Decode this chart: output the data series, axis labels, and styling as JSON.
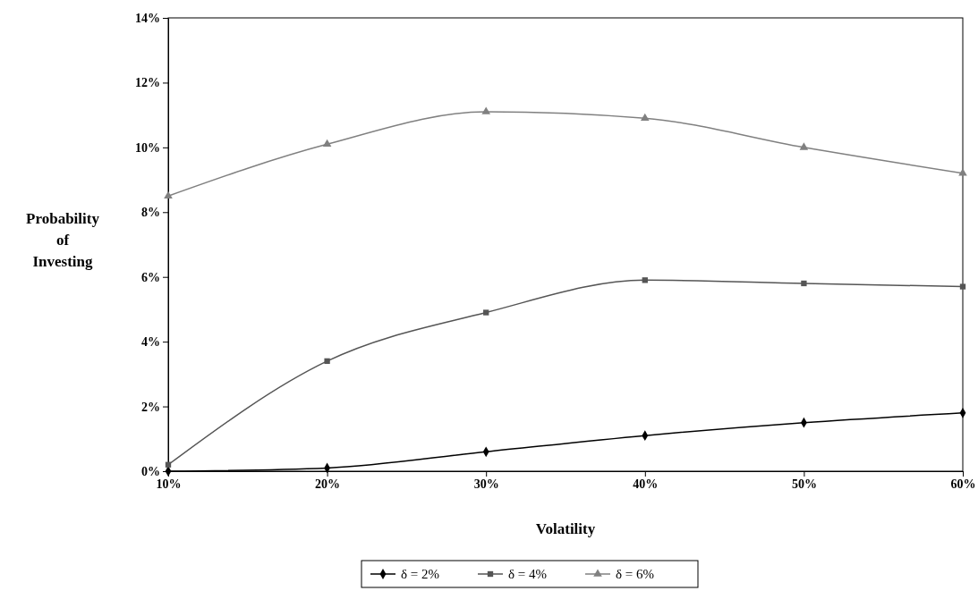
{
  "chart_data": {
    "type": "line",
    "xlabel": "Volatility",
    "ylabel": "Probability of Investing",
    "x": [
      10,
      20,
      30,
      40,
      50,
      60
    ],
    "series": [
      {
        "name": "δ = 2%",
        "color": "#000000",
        "marker": "diamond",
        "values": [
          0,
          0.1,
          0.6,
          1.1,
          1.5,
          1.8
        ]
      },
      {
        "name": "δ = 4%",
        "color": "#555555",
        "marker": "square",
        "values": [
          0.2,
          3.4,
          4.9,
          5.9,
          5.8,
          5.7
        ]
      },
      {
        "name": "δ = 6%",
        "color": "#808080",
        "marker": "triangle",
        "values": [
          8.5,
          10.1,
          11.1,
          10.9,
          10.0,
          9.2
        ]
      }
    ],
    "xlim": [
      10,
      60
    ],
    "xticks": [
      {
        "value": 10,
        "label": "10%"
      },
      {
        "value": 20,
        "label": "20%"
      },
      {
        "value": 30,
        "label": "30%"
      },
      {
        "value": 40,
        "label": "40%"
      },
      {
        "value": 50,
        "label": "50%"
      },
      {
        "value": 60,
        "label": "60%"
      }
    ],
    "ylim": [
      0,
      14
    ],
    "yticks": [
      {
        "value": 0,
        "label": "0%"
      },
      {
        "value": 2,
        "label": "2%"
      },
      {
        "value": 4,
        "label": "4%"
      },
      {
        "value": 6,
        "label": "6%"
      },
      {
        "value": 8,
        "label": "8%"
      },
      {
        "value": 10,
        "label": "10%"
      },
      {
        "value": 12,
        "label": "12%"
      },
      {
        "value": 14,
        "label": "14%"
      }
    ],
    "grid": false,
    "legend": "bottom",
    "line_style": "solid"
  }
}
